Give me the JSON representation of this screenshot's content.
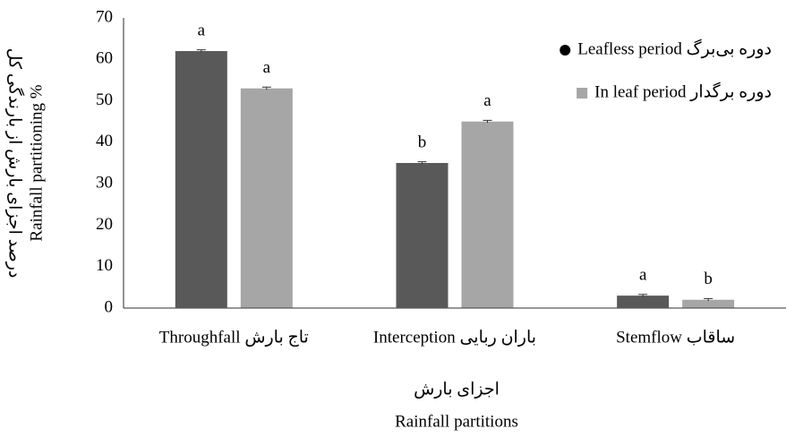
{
  "chart_data": {
    "type": "bar",
    "y_axis_label": "Rainfall partitioning %",
    "y_axis_label_fa": "درصد اجزای بارش از بارندگی کل",
    "x_axis_label_fa": "اجزای بارش",
    "x_axis_label": "Rainfall partitions",
    "categories": [
      "Throughfall  تاج بارش",
      "باران ربایی Interception",
      "ساقاب Stemflow"
    ],
    "series": [
      {
        "name": "Leafless period  دوره بی‌برگ",
        "color": "#595959",
        "values": [
          62,
          35,
          3
        ],
        "errors": [
          0.3,
          0.3,
          0.3
        ],
        "labels": [
          "a",
          "b",
          "a"
        ]
      },
      {
        "name": "In leaf period   دوره برگدار",
        "color": "#a6a6a6",
        "values": [
          53,
          45,
          2
        ],
        "errors": [
          0.3,
          0.3,
          0.3
        ],
        "labels": [
          "a",
          "a",
          "b"
        ]
      }
    ],
    "legend": {
      "position": "upper right",
      "markers": [
        {
          "shape": "circle",
          "color": "#000000"
        },
        {
          "shape": "square",
          "color": "#a6a6a6"
        }
      ]
    },
    "ylim": [
      0,
      70
    ],
    "yticks": [
      0,
      10,
      20,
      30,
      40,
      50,
      60,
      70
    ],
    "grid": false
  }
}
